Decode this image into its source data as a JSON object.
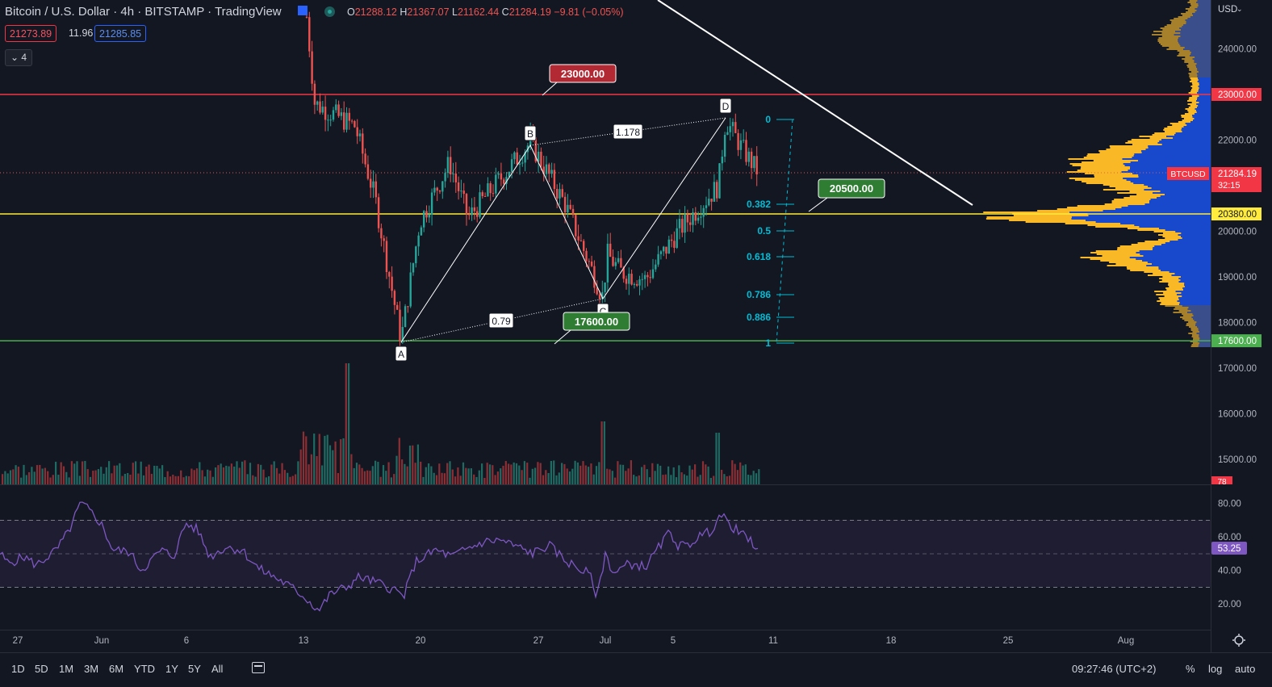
{
  "header": {
    "title": "Bitcoin / U.S. Dollar · 4h · BITSTAMP · TradingView",
    "open_label": "O",
    "open": "21288.12",
    "high_label": "H",
    "high": "21367.07",
    "low_label": "L",
    "low": "21162.44",
    "close_label": "C",
    "close": "21284.19",
    "change": "−9.81 (−0.05%)",
    "bid": "21273.89",
    "spread": "11.96",
    "ask": "21285.85",
    "indicator_toggle": "4"
  },
  "price_axis": {
    "currency": "USD",
    "ticks": [
      "24000.00",
      "23000.00",
      "22000.00",
      "21000.00",
      "20000.00",
      "19000.00",
      "18000.00",
      "17000.00",
      "16000.00",
      "15000.00"
    ],
    "symbol_tag": "BTCUSD",
    "last_price": "21284.19",
    "countdown": "32:15",
    "volume_tag": "78"
  },
  "levels": [
    {
      "name": "resistance",
      "price": 23000,
      "label": "23000.00",
      "color": "#f23645"
    },
    {
      "name": "support",
      "price": 20380,
      "label": "20380.00",
      "color": "#ffeb3b"
    },
    {
      "name": "major-support",
      "price": 17600,
      "label": "17600.00",
      "color": "#4caf50"
    }
  ],
  "callouts": {
    "top": "23000.00",
    "mid": "20500.00",
    "low": "17600.00"
  },
  "pattern": {
    "points": [
      "A",
      "B",
      "C",
      "D"
    ],
    "ratio_ac": "0.79",
    "ratio_bd": "1.178"
  },
  "fib": {
    "levels": [
      {
        "label": "0"
      },
      {
        "label": "0.382"
      },
      {
        "label": "0.5"
      },
      {
        "label": "0.618"
      },
      {
        "label": "0.786"
      },
      {
        "label": "0.886"
      },
      {
        "label": "1"
      }
    ]
  },
  "rsi": {
    "ticks": [
      "80.00",
      "60.00",
      "40.00",
      "20.00"
    ],
    "value": "53.25",
    "upper": 70,
    "lower": 30
  },
  "time_axis": {
    "labels": [
      "27",
      "Jun",
      "6",
      "13",
      "20",
      "27",
      "Jul",
      "5",
      "11",
      "18",
      "25",
      "Aug"
    ]
  },
  "toolbar": {
    "timeframes": [
      "1D",
      "5D",
      "1M",
      "3M",
      "6M",
      "YTD",
      "1Y",
      "5Y",
      "All"
    ],
    "clock": "09:27:46 (UTC+2)",
    "percent": "%",
    "log": "log",
    "auto": "auto"
  },
  "colors": {
    "bg": "#131722",
    "up": "#26a69a",
    "down": "#ef5350",
    "rsi": "#7e57c2",
    "profile_value": "#1848cc",
    "profile_other": "#f9b826"
  }
}
